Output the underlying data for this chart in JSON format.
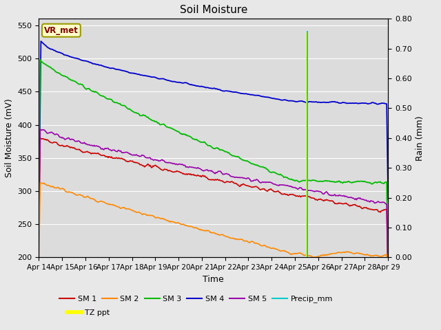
{
  "title": "Soil Moisture",
  "xlabel": "Time",
  "ylabel_left": "Soil Moisture (mV)",
  "ylabel_right": "Rain (mm)",
  "annotation_text": "VR_met",
  "fig_facecolor": "#e8e8e8",
  "plot_facecolor": "#dcdcdc",
  "ylim_left": [
    200,
    560
  ],
  "ylim_right": [
    0.0,
    0.8
  ],
  "yticks_left": [
    200,
    250,
    300,
    350,
    400,
    450,
    500,
    550
  ],
  "yticks_right": [
    0.0,
    0.1,
    0.2,
    0.3,
    0.4,
    0.5,
    0.6,
    0.7,
    0.8
  ],
  "xlim": [
    0,
    15
  ],
  "spike_day": 11.5,
  "colors": {
    "SM1": "#cc0000",
    "SM2": "#ff8800",
    "SM3": "#00bb00",
    "SM4": "#0000cc",
    "SM5": "#9900aa",
    "Precip": "#00cccc",
    "TZppt": "#ffff00"
  },
  "grid_color": "#ffffff",
  "grid_linewidth": 0.8
}
